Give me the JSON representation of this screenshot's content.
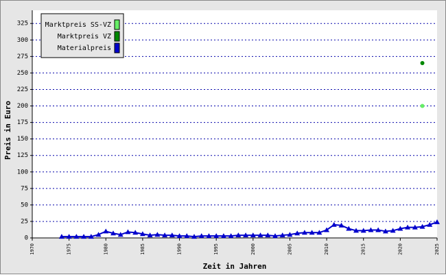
{
  "chart_data": {
    "type": "line",
    "x_label": "Zeit in Jahren",
    "y_label": "Preis in Euro",
    "xlim": [
      1970,
      2025
    ],
    "xticks": [
      1970,
      1975,
      1980,
      1985,
      1990,
      1995,
      2000,
      2005,
      2010,
      2015,
      2020,
      2025
    ],
    "ylim": [
      0,
      345
    ],
    "yticks": [
      0,
      25,
      50,
      75,
      100,
      125,
      150,
      175,
      200,
      225,
      250,
      275,
      300,
      325
    ],
    "grid": true,
    "legend": "top-left",
    "series": [
      {
        "name": "Marktpreis SS-VZ",
        "color": "#66ee66",
        "marker": "circle",
        "x": [
          2023
        ],
        "values": [
          200
        ]
      },
      {
        "name": "Marktpreis VZ",
        "color": "#008800",
        "marker": "circle",
        "x": [
          2023
        ],
        "values": [
          265
        ]
      },
      {
        "name": "Materialpreis",
        "color": "#0000cc",
        "marker": "triangle",
        "x": [
          1974,
          1975,
          1976,
          1977,
          1978,
          1979,
          1980,
          1981,
          1982,
          1983,
          1984,
          1985,
          1986,
          1987,
          1988,
          1989,
          1990,
          1991,
          1992,
          1993,
          1994,
          1995,
          1996,
          1997,
          1998,
          1999,
          2000,
          2001,
          2002,
          2003,
          2004,
          2005,
          2006,
          2007,
          2008,
          2009,
          2010,
          2011,
          2012,
          2013,
          2014,
          2015,
          2016,
          2017,
          2018,
          2019,
          2020,
          2021,
          2022,
          2023,
          2024,
          2025
        ],
        "values": [
          2,
          2,
          2,
          2,
          2,
          5,
          10,
          7,
          5,
          9,
          8,
          6,
          4,
          5,
          4,
          4,
          3,
          3,
          2,
          3,
          3,
          3,
          3,
          3,
          4,
          4,
          4,
          4,
          4,
          3,
          4,
          5,
          7,
          8,
          8,
          8,
          12,
          20,
          19,
          14,
          11,
          11,
          12,
          12,
          10,
          11,
          14,
          16,
          16,
          17,
          20,
          24
        ]
      }
    ]
  }
}
